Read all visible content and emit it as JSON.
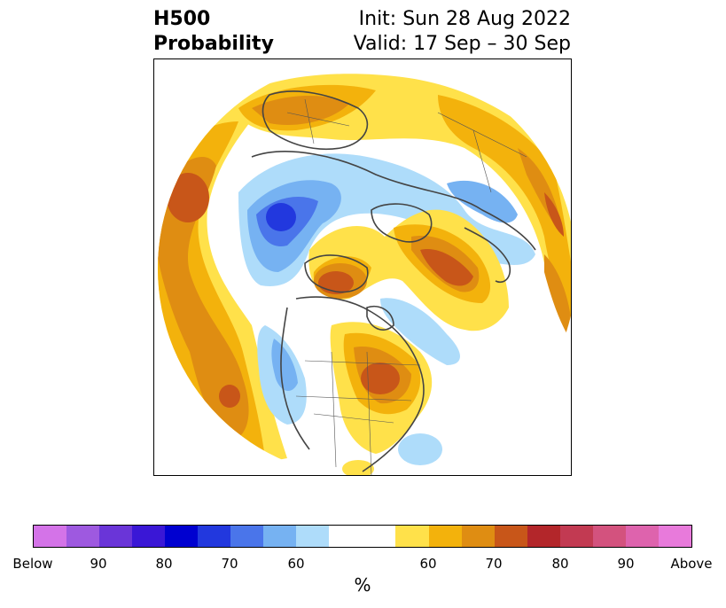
{
  "header": {
    "title_line1": "H500",
    "title_line2": "Probability",
    "init_text": "Init: Sun 28 Aug 2022",
    "valid_text": "Valid: 17 Sep – 30 Sep"
  },
  "colorbar": {
    "colors": [
      "#d473e8",
      "#9e59e0",
      "#6a35d8",
      "#3a17d6",
      "#0000d0",
      "#2238de",
      "#4a75ea",
      "#76b2f2",
      "#aedcfa",
      "#ffffff",
      "#ffe14a",
      "#f3b20c",
      "#df8d12",
      "#c85619",
      "#b3262a",
      "#c23a52",
      "#d3527e",
      "#de63ad",
      "#e87adb"
    ],
    "tick_labels": [
      "Below",
      "90",
      "80",
      "70",
      "60",
      "60",
      "70",
      "80",
      "90",
      "Above"
    ],
    "unit_label": "%"
  },
  "map": {
    "projection": "north polar stereographic",
    "ocean_fill": "#ffffff",
    "coastline_color": "#444444"
  }
}
